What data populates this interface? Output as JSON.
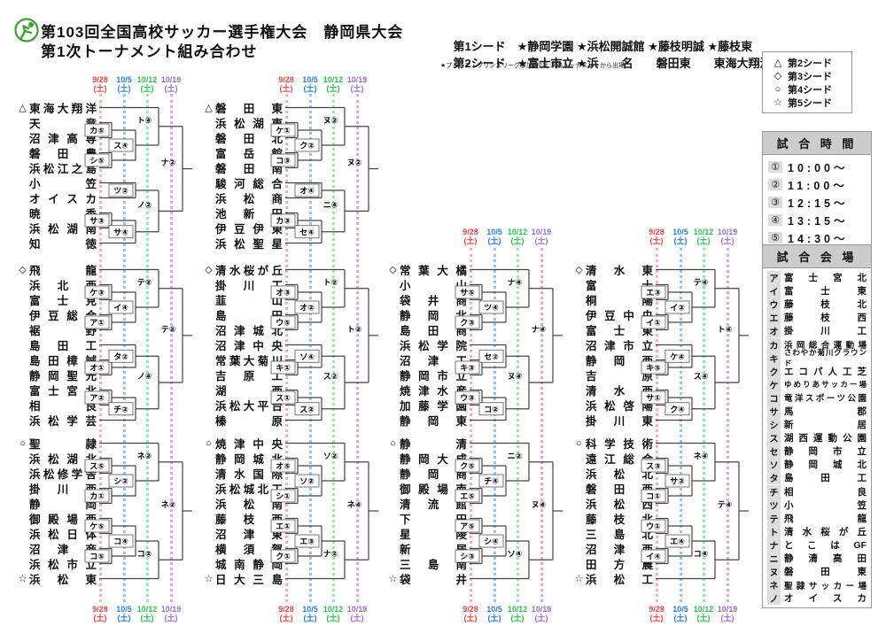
{
  "header": {
    "title_line1": "第103回全国高校サッカー選手権大会　静岡県大会",
    "title_line2": "第1次トーナメント組み合わせ",
    "seed1_label": "第1シード",
    "seed1_teams": "★静岡学園 ★浜松開誠館 ★藤枝明誠 ★藤枝東",
    "seed2_label": "第2シード",
    "seed2_teams": "★富士市立 ★浜　　名　　磐田東　　東海大翔洋",
    "note": "★プレミア・プリンスリーグ参加6校は 決勝トーナメントから出場"
  },
  "seed_legend": {
    "items": [
      {
        "mark": "△",
        "label": "第2シード"
      },
      {
        "mark": "◇",
        "label": "第3シード"
      },
      {
        "mark": "○",
        "label": "第4シード"
      },
      {
        "mark": "☆",
        "label": "第5シード"
      }
    ]
  },
  "match_times": {
    "title": "試 合 時 間",
    "rows": [
      {
        "no": "①",
        "time": "10:00～"
      },
      {
        "no": "②",
        "time": "11:00～"
      },
      {
        "no": "③",
        "time": "12:15～"
      },
      {
        "no": "④",
        "time": "13:15～"
      },
      {
        "no": "⑤",
        "time": "14:30～"
      }
    ]
  },
  "venues": {
    "title": "試 合 会 場",
    "rows": [
      {
        "kana": "ア",
        "name": "富士宮北"
      },
      {
        "kana": "イ",
        "name": "富士東"
      },
      {
        "kana": "ウ",
        "name": "藤枝北"
      },
      {
        "kana": "エ",
        "name": "藤枝西"
      },
      {
        "kana": "オ",
        "name": "掛川工"
      },
      {
        "kana": "カ",
        "name": "浜岡総合運動場"
      },
      {
        "kana": "キ",
        "name": "さわやか菊川グラウンド"
      },
      {
        "kana": "ク",
        "name": "エコパ人工芝"
      },
      {
        "kana": "ケ",
        "name": "ゆめりあサッカー場"
      },
      {
        "kana": "コ",
        "name": "竜洋スポーツ公園"
      },
      {
        "kana": "サ",
        "name": "馬郡"
      },
      {
        "kana": "シ",
        "name": "新居"
      },
      {
        "kana": "ス",
        "name": "湖西運動公園"
      },
      {
        "kana": "セ",
        "name": "静岡市立"
      },
      {
        "kana": "ソ",
        "name": "静岡城北"
      },
      {
        "kana": "タ",
        "name": "島田工"
      },
      {
        "kana": "チ",
        "name": "相良"
      },
      {
        "kana": "ツ",
        "name": "小笠"
      },
      {
        "kana": "テ",
        "name": "飛龍"
      },
      {
        "kana": "ト",
        "name": "清水桜が丘"
      },
      {
        "kana": "ナ",
        "name": "とこはGF"
      },
      {
        "kana": "ニ",
        "name": "静清高田"
      },
      {
        "kana": "ヌ",
        "name": "磐田東"
      },
      {
        "kana": "ネ",
        "name": "聖隷サッカー場"
      },
      {
        "kana": "ノ",
        "name": "オイスカ"
      }
    ]
  },
  "dates": [
    {
      "label": "9/28",
      "sub": "(土)",
      "text_color": "#ef4444",
      "dot_color": "#f7b2b8"
    },
    {
      "label": "10/5",
      "sub": "(土)",
      "text_color": "#2b7de0",
      "dot_color": "#92c5f5"
    },
    {
      "label": "10/12",
      "sub": "(土)",
      "text_color": "#27c24f",
      "dot_color": "#9ae9b1"
    },
    {
      "label": "10/19",
      "sub": "(土)",
      "text_color": "#9a6bd0",
      "dot_color": "#d6aae6"
    }
  ],
  "bracket_colors": {
    "line": "#444",
    "label_border": "#555"
  },
  "blocks": [
    {
      "id": "A",
      "col": 0,
      "band": 0,
      "teams": [
        {
          "n": "東海大翔洋",
          "s": "△"
        },
        {
          "n": "天竜"
        },
        {
          "n": "沼津高専"
        },
        {
          "n": "磐田農"
        },
        {
          "n": "浜松江之島"
        },
        {
          "n": "小笠"
        },
        {
          "n": "オイスカ"
        },
        {
          "n": "暁秀"
        },
        {
          "n": "浜松湖南"
        },
        {
          "n": "知徳"
        }
      ],
      "matches": [
        {
          "r": 0,
          "a": "t1",
          "b": "t2",
          "l": "カ⑤"
        },
        {
          "r": 0,
          "a": "t3",
          "b": "t4",
          "l": "シ⑤"
        },
        {
          "r": 1,
          "a": "m0",
          "b": "m1",
          "l": "ス④"
        },
        {
          "r": 2,
          "a": "t0",
          "b": "m2",
          "l": "ト④"
        },
        {
          "r": 1,
          "a": "t5",
          "b": "t6",
          "l": "ツ②"
        },
        {
          "r": 0,
          "a": "t7",
          "b": "t8",
          "l": "サ③"
        },
        {
          "r": 1,
          "a": "m5",
          "b": "t9",
          "l": "サ④"
        },
        {
          "r": 2,
          "a": "m4",
          "b": "m6",
          "l": "ノ②"
        },
        {
          "r": 3,
          "a": "m3",
          "b": "m7",
          "l": "ナ②"
        }
      ]
    },
    {
      "id": "B",
      "col": 1,
      "band": 0,
      "teams": [
        {
          "n": "磐田東",
          "s": "△"
        },
        {
          "n": "浜松湖東"
        },
        {
          "n": "磐田北"
        },
        {
          "n": "富岳館"
        },
        {
          "n": "磐田南"
        },
        {
          "n": "駿河総合"
        },
        {
          "n": "浜松商"
        },
        {
          "n": "池新田"
        },
        {
          "n": "伊豆伊東"
        },
        {
          "n": "浜松聖星"
        }
      ],
      "matches": [
        {
          "r": 0,
          "a": "t1",
          "b": "t2",
          "l": "ケ①"
        },
        {
          "r": 0,
          "a": "t3",
          "b": "t4",
          "l": "コ③"
        },
        {
          "r": 1,
          "a": "m0",
          "b": "m1",
          "l": "ク②"
        },
        {
          "r": 2,
          "a": "t0",
          "b": "m2",
          "l": "ヌ②"
        },
        {
          "r": 1,
          "a": "t5",
          "b": "t6",
          "l": "オ④"
        },
        {
          "r": 0,
          "a": "t7",
          "b": "t8",
          "l": "カ③"
        },
        {
          "r": 1,
          "a": "m5",
          "b": "t9",
          "l": "セ④"
        },
        {
          "r": 2,
          "a": "m4",
          "b": "m6",
          "l": "ニ④"
        },
        {
          "r": 3,
          "a": "m3",
          "b": "m7",
          "l": "ヌ②"
        }
      ]
    },
    {
      "id": "C",
      "col": 0,
      "band": 1,
      "teams": [
        {
          "n": "飛龍",
          "s": "◇"
        },
        {
          "n": "浜北西"
        },
        {
          "n": "富士見"
        },
        {
          "n": "伊豆総合"
        },
        {
          "n": "裾野"
        },
        {
          "n": "島田工"
        },
        {
          "n": "島田樟誠"
        },
        {
          "n": "静岡聖光"
        },
        {
          "n": "富士宮北"
        },
        {
          "n": "相良"
        },
        {
          "n": "浜松学芸"
        }
      ],
      "matches": [
        {
          "r": 0,
          "a": "t1",
          "b": "t2",
          "l": "ケ③"
        },
        {
          "r": 0,
          "a": "t3",
          "b": "t4",
          "l": "ア①"
        },
        {
          "r": 1,
          "a": "m0",
          "b": "m1",
          "l": "イ④"
        },
        {
          "r": 2,
          "a": "t0",
          "b": "m2",
          "l": "テ②"
        },
        {
          "r": 0,
          "a": "t6",
          "b": "t7",
          "l": "オ①"
        },
        {
          "r": 1,
          "a": "t5",
          "b": "m4",
          "l": "タ②"
        },
        {
          "r": 0,
          "a": "t8",
          "b": "t9",
          "l": "ア②"
        },
        {
          "r": 1,
          "a": "m6",
          "b": "t10",
          "l": "チ②"
        },
        {
          "r": 2,
          "a": "m5",
          "b": "m7",
          "l": "ノ④"
        },
        {
          "r": 3,
          "a": "m3",
          "b": "m8",
          "l": "テ②"
        }
      ]
    },
    {
      "id": "D",
      "col": 1,
      "band": 1,
      "teams": [
        {
          "n": "清水桜が丘",
          "s": "◇"
        },
        {
          "n": "掛川工"
        },
        {
          "n": "韮山"
        },
        {
          "n": "島田"
        },
        {
          "n": "沼津城北"
        },
        {
          "n": "沼津中央"
        },
        {
          "n": "常葉大菊川"
        },
        {
          "n": "吉原工"
        },
        {
          "n": "湖西"
        },
        {
          "n": "浜松大平台"
        },
        {
          "n": "榛原"
        }
      ],
      "matches": [
        {
          "r": 0,
          "a": "t1",
          "b": "t2",
          "l": "オ③"
        },
        {
          "r": 0,
          "a": "t3",
          "b": "t4",
          "l": "ウ⑤"
        },
        {
          "r": 1,
          "a": "m0",
          "b": "m1",
          "l": "オ②"
        },
        {
          "r": 2,
          "a": "t0",
          "b": "m2",
          "l": "ト②"
        },
        {
          "r": 0,
          "a": "t6",
          "b": "t7",
          "l": "キ①"
        },
        {
          "r": 1,
          "a": "t5",
          "b": "m4",
          "l": "ソ④"
        },
        {
          "r": 0,
          "a": "t8",
          "b": "t9",
          "l": "ス①"
        },
        {
          "r": 1,
          "a": "m6",
          "b": "t10",
          "l": "ス②"
        },
        {
          "r": 2,
          "a": "m5",
          "b": "m7",
          "l": "ス②"
        },
        {
          "r": 3,
          "a": "m3",
          "b": "m8",
          "l": "ト②"
        }
      ]
    },
    {
      "id": "E",
      "col": 2,
      "band": 1,
      "teams": [
        {
          "n": "常葉大橘",
          "s": "◇"
        },
        {
          "n": "小山"
        },
        {
          "n": "袋井商"
        },
        {
          "n": "静岡北"
        },
        {
          "n": "島田商"
        },
        {
          "n": "浜松学院"
        },
        {
          "n": "沼津工"
        },
        {
          "n": "静岡市立"
        },
        {
          "n": "焼津水産"
        },
        {
          "n": "加藤学園"
        },
        {
          "n": "静岡東"
        }
      ],
      "matches": [
        {
          "r": 0,
          "a": "t1",
          "b": "t2",
          "l": "サ⑤"
        },
        {
          "r": 0,
          "a": "t3",
          "b": "t4",
          "l": "ク③"
        },
        {
          "r": 1,
          "a": "m0",
          "b": "m1",
          "l": "ツ④"
        },
        {
          "r": 2,
          "a": "t0",
          "b": "m2",
          "l": "ナ④"
        },
        {
          "r": 0,
          "a": "t6",
          "b": "t7",
          "l": "キ③"
        },
        {
          "r": 1,
          "a": "t5",
          "b": "m4",
          "l": "セ②"
        },
        {
          "r": 0,
          "a": "t8",
          "b": "t9",
          "l": "ウ③"
        },
        {
          "r": 1,
          "a": "m6",
          "b": "t10",
          "l": "コ②"
        },
        {
          "r": 2,
          "a": "m5",
          "b": "m7",
          "l": "ヌ④"
        },
        {
          "r": 3,
          "a": "m3",
          "b": "m8",
          "l": "ナ④"
        }
      ]
    },
    {
      "id": "F",
      "col": 3,
      "band": 1,
      "teams": [
        {
          "n": "清水東",
          "s": "◇"
        },
        {
          "n": "富士"
        },
        {
          "n": "桐陽"
        },
        {
          "n": "伊豆中央"
        },
        {
          "n": "富士東"
        },
        {
          "n": "沼津市立"
        },
        {
          "n": "静岡西"
        },
        {
          "n": "吉原"
        },
        {
          "n": "清水西"
        },
        {
          "n": "浜松啓陽"
        },
        {
          "n": "掛川東"
        }
      ],
      "matches": [
        {
          "r": 0,
          "a": "t1",
          "b": "t2",
          "l": "エ③"
        },
        {
          "r": 0,
          "a": "t3",
          "b": "t4",
          "l": "イ①"
        },
        {
          "r": 1,
          "a": "m0",
          "b": "m1",
          "l": "イ②"
        },
        {
          "r": 2,
          "a": "t0",
          "b": "m2",
          "l": "テ④"
        },
        {
          "r": 0,
          "a": "t6",
          "b": "t7",
          "l": "キ⑤"
        },
        {
          "r": 1,
          "a": "t5",
          "b": "m4",
          "l": "ケ④"
        },
        {
          "r": 0,
          "a": "t8",
          "b": "t9",
          "l": "サ①"
        },
        {
          "r": 1,
          "a": "m6",
          "b": "t10",
          "l": "ク④"
        },
        {
          "r": 2,
          "a": "m5",
          "b": "m7",
          "l": "ス④"
        },
        {
          "r": 3,
          "a": "m3",
          "b": "m8",
          "l": "ト④"
        }
      ]
    },
    {
      "id": "G",
      "col": 0,
      "band": 2,
      "teams": [
        {
          "n": "聖隷",
          "s": "○"
        },
        {
          "n": "浜松湖北"
        },
        {
          "n": "浜松修学舎"
        },
        {
          "n": "掛川西"
        },
        {
          "n": "静岡"
        },
        {
          "n": "御殿場西"
        },
        {
          "n": "浜松日体"
        },
        {
          "n": "沼津商"
        },
        {
          "n": "浜松市立"
        },
        {
          "n": "浜松東",
          "s": "☆"
        }
      ],
      "matches": [
        {
          "r": 0,
          "a": "t1",
          "b": "t2",
          "l": "ス⑤"
        },
        {
          "r": 0,
          "a": "t3",
          "b": "t4",
          "l": "カ①"
        },
        {
          "r": 1,
          "a": "m0",
          "b": "m1",
          "l": "シ②"
        },
        {
          "r": 2,
          "a": "t0",
          "b": "m2",
          "l": "ネ②"
        },
        {
          "r": 0,
          "a": "t5",
          "b": "t6",
          "l": "ケ⑤"
        },
        {
          "r": 0,
          "a": "t7",
          "b": "t8",
          "l": "コ⑤"
        },
        {
          "r": 1,
          "a": "m4",
          "b": "m5",
          "l": "コ④"
        },
        {
          "r": 2,
          "a": "m6",
          "b": "t9",
          "l": "コ②"
        },
        {
          "r": 3,
          "a": "m3",
          "b": "m7",
          "l": "ネ②"
        }
      ]
    },
    {
      "id": "H",
      "col": 1,
      "band": 2,
      "teams": [
        {
          "n": "焼津中央",
          "s": "○"
        },
        {
          "n": "静岡城北"
        },
        {
          "n": "清水国際"
        },
        {
          "n": "浜松城北工"
        },
        {
          "n": "浜松南"
        },
        {
          "n": "藤枝西"
        },
        {
          "n": "沼津東"
        },
        {
          "n": "横須賀"
        },
        {
          "n": "城南静岡"
        },
        {
          "n": "日大三島",
          "s": "☆"
        }
      ],
      "matches": [
        {
          "r": 0,
          "a": "t1",
          "b": "t2",
          "l": "オ⑤"
        },
        {
          "r": 0,
          "a": "t3",
          "b": "t4",
          "l": "シ①"
        },
        {
          "r": 1,
          "a": "m0",
          "b": "m1",
          "l": "ソ②"
        },
        {
          "r": 2,
          "a": "t0",
          "b": "m2",
          "l": "ソ②"
        },
        {
          "r": 0,
          "a": "t5",
          "b": "t6",
          "l": "エ①"
        },
        {
          "r": 0,
          "a": "t7",
          "b": "t8",
          "l": "ク①"
        },
        {
          "r": 1,
          "a": "m4",
          "b": "m5",
          "l": "エ③"
        },
        {
          "r": 2,
          "a": "m6",
          "b": "t9",
          "l": "ナ②"
        },
        {
          "r": 3,
          "a": "m3",
          "b": "m7",
          "l": "ネ④"
        }
      ]
    },
    {
      "id": "I",
      "col": 2,
      "band": 2,
      "teams": [
        {
          "n": "静清",
          "s": "○"
        },
        {
          "n": "静岡大成"
        },
        {
          "n": "静岡商"
        },
        {
          "n": "御殿場南"
        },
        {
          "n": "清流館"
        },
        {
          "n": "下田"
        },
        {
          "n": "星陵"
        },
        {
          "n": "新居"
        },
        {
          "n": "三島南"
        },
        {
          "n": "袋井",
          "s": "☆"
        }
      ],
      "matches": [
        {
          "r": 0,
          "a": "t1",
          "b": "t2",
          "l": "ク⑤"
        },
        {
          "r": 0,
          "a": "t3",
          "b": "t4",
          "l": "エ⑤"
        },
        {
          "r": 1,
          "a": "m0",
          "b": "m1",
          "l": "チ④"
        },
        {
          "r": 2,
          "a": "t0",
          "b": "m2",
          "l": "ニ②"
        },
        {
          "r": 0,
          "a": "t5",
          "b": "t6",
          "l": "ア⑤"
        },
        {
          "r": 0,
          "a": "t7",
          "b": "t8",
          "l": "シ③"
        },
        {
          "r": 1,
          "a": "m4",
          "b": "m5",
          "l": "シ④"
        },
        {
          "r": 2,
          "a": "m6",
          "b": "t9",
          "l": "ソ④"
        },
        {
          "r": 3,
          "a": "m3",
          "b": "m7",
          "l": "ヌ④"
        }
      ]
    },
    {
      "id": "J",
      "col": 3,
      "band": 2,
      "teams": [
        {
          "n": "科学技術",
          "s": "○"
        },
        {
          "n": "遠江総合"
        },
        {
          "n": "浜松北"
        },
        {
          "n": "磐田西"
        },
        {
          "n": "浜松西"
        },
        {
          "n": "藤枝北"
        },
        {
          "n": "三島北"
        },
        {
          "n": "沼津西"
        },
        {
          "n": "田方農"
        },
        {
          "n": "浜松工",
          "s": "☆"
        }
      ],
      "matches": [
        {
          "r": 0,
          "a": "t1",
          "b": "t2",
          "l": "ス③"
        },
        {
          "r": 0,
          "a": "t3",
          "b": "t4",
          "l": "コ①"
        },
        {
          "r": 1,
          "a": "m0",
          "b": "m1",
          "l": "サ②"
        },
        {
          "r": 2,
          "a": "t0",
          "b": "m2",
          "l": "ネ④"
        },
        {
          "r": 0,
          "a": "t5",
          "b": "t6",
          "l": "ウ①"
        },
        {
          "r": 0,
          "a": "t7",
          "b": "t8",
          "l": "イ④"
        },
        {
          "r": 1,
          "a": "m4",
          "b": "m5",
          "l": "エ④"
        },
        {
          "r": 2,
          "a": "m6",
          "b": "t9",
          "l": "コ④"
        },
        {
          "r": 3,
          "a": "m3",
          "b": "m7",
          "l": "テ④"
        }
      ]
    }
  ]
}
